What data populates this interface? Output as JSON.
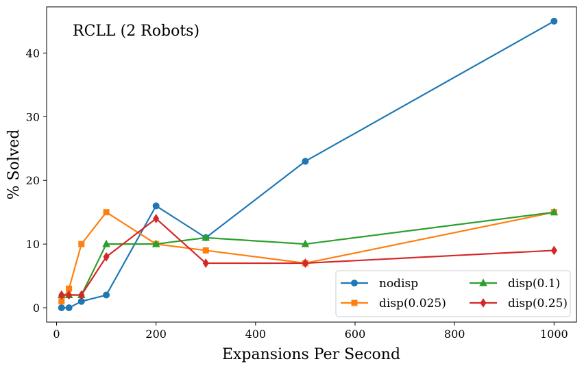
{
  "chart_data": {
    "type": "line",
    "title": "RCLL (2 Robots)",
    "xlabel": "Expansions Per Second",
    "ylabel": "% Solved",
    "xlim": [
      -20,
      1045
    ],
    "ylim": [
      -2.25,
      47.25
    ],
    "xticks": [
      0,
      200,
      400,
      600,
      800,
      1000
    ],
    "yticks": [
      0,
      10,
      20,
      30,
      40
    ],
    "grid": false,
    "legend_position": "lower-right",
    "legend_columns": 2,
    "x": [
      10,
      25,
      50,
      100,
      200,
      300,
      500,
      1000
    ],
    "series": [
      {
        "name": "nodisp",
        "color": "#1f77b4",
        "marker": "circle",
        "values": [
          0,
          0,
          1,
          2,
          16,
          11,
          23,
          45
        ]
      },
      {
        "name": "disp(0.025)",
        "color": "#ff7f0e",
        "marker": "square",
        "values": [
          1,
          3,
          10,
          15,
          10,
          9,
          7,
          15
        ]
      },
      {
        "name": "disp(0.1)",
        "color": "#2ca02c",
        "marker": "triangle",
        "values": [
          2,
          2,
          2,
          10,
          10,
          11,
          10,
          15
        ]
      },
      {
        "name": "disp(0.25)",
        "color": "#d62728",
        "marker": "diamond",
        "values": [
          2,
          2,
          2,
          8,
          14,
          7,
          7,
          9
        ]
      }
    ]
  }
}
